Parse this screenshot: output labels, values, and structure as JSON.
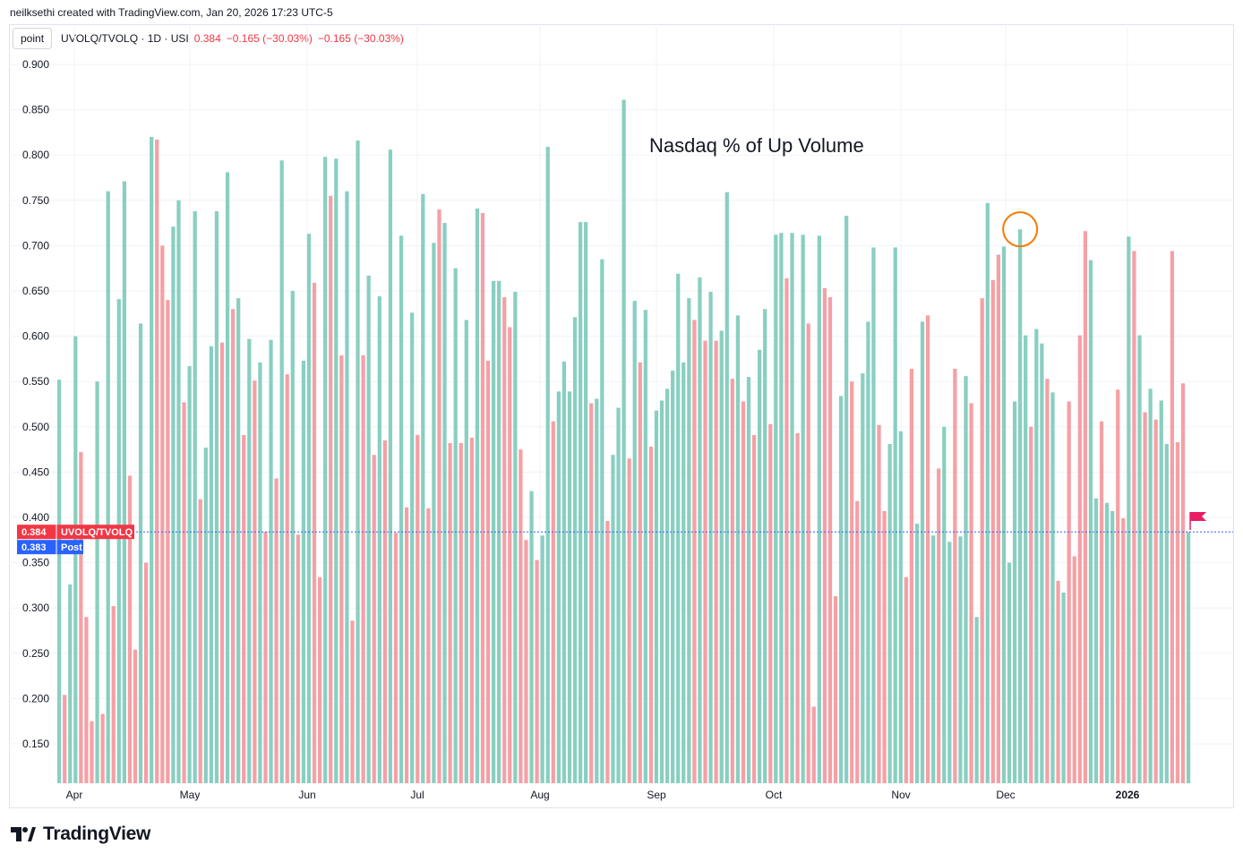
{
  "credit": "neilksethi created with TradingView.com, Jan 20, 2026 17:23 UTC-5",
  "header": {
    "button": "point",
    "symbol": "UVOLQ/TVOLQ · 1D · USI",
    "value": "0.384",
    "change1": "−0.165 (−30.03%)",
    "change2": "−0.165 (−30.03%)"
  },
  "brand": "TradingView",
  "colors": {
    "up": "#89cfc1",
    "down": "#f5a0a5",
    "last": "#f23645",
    "post": "#2962ff",
    "flag": "#e91e63",
    "circle": "#f57c00"
  },
  "labels": {
    "last_value": "0.384",
    "last_name": "UVOLQ/TVOLQ",
    "post_value": "0.383",
    "post_name": "Post"
  },
  "chart_data": {
    "type": "bar",
    "title": "Nasdaq % of Up Volume",
    "ylim": [
      0.105,
      0.93
    ],
    "y_ticks": [
      "0.900",
      "0.850",
      "0.800",
      "0.750",
      "0.700",
      "0.650",
      "0.600",
      "0.550",
      "0.500",
      "0.450",
      "0.400",
      "0.350",
      "0.300",
      "0.250",
      "0.200",
      "0.150"
    ],
    "x_ticks": [
      "Apr",
      "May",
      "Jun",
      "Jul",
      "Aug",
      "Sep",
      "Oct",
      "Nov",
      "Dec",
      "2026"
    ],
    "values": [
      0.552,
      0.204,
      0.326,
      0.6,
      0.472,
      0.29,
      0.175,
      0.55,
      0.183,
      0.76,
      0.302,
      0.641,
      0.771,
      0.446,
      0.254,
      0.614,
      0.35,
      0.82,
      0.817,
      0.7,
      0.64,
      0.721,
      0.75,
      0.527,
      0.567,
      0.738,
      0.42,
      0.477,
      0.589,
      0.738,
      0.593,
      0.781,
      0.63,
      0.642,
      0.491,
      0.597,
      0.551,
      0.571,
      0.384,
      0.596,
      0.443,
      0.794,
      0.558,
      0.65,
      0.381,
      0.573,
      0.713,
      0.659,
      0.334,
      0.798,
      0.755,
      0.796,
      0.579,
      0.76,
      0.286,
      0.816,
      0.579,
      0.667,
      0.469,
      0.644,
      0.485,
      0.806,
      0.383,
      0.711,
      0.411,
      0.626,
      0.491,
      0.757,
      0.41,
      0.703,
      0.74,
      0.725,
      0.482,
      0.675,
      0.482,
      0.618,
      0.488,
      0.741,
      0.736,
      0.573,
      0.661,
      0.661,
      0.643,
      0.61,
      0.649,
      0.475,
      0.375,
      0.429,
      0.353,
      0.38,
      0.809,
      0.506,
      0.539,
      0.572,
      0.539,
      0.621,
      0.726,
      0.726,
      0.526,
      0.531,
      0.685,
      0.396,
      0.469,
      0.521,
      0.861,
      0.465,
      0.639,
      0.571,
      0.629,
      0.478,
      0.518,
      0.529,
      0.542,
      0.562,
      0.669,
      0.571,
      0.642,
      0.618,
      0.665,
      0.595,
      0.649,
      0.595,
      0.606,
      0.759,
      0.553,
      0.623,
      0.528,
      0.555,
      0.491,
      0.585,
      0.63,
      0.503,
      0.712,
      0.714,
      0.664,
      0.714,
      0.493,
      0.712,
      0.614,
      0.191,
      0.711,
      0.653,
      0.643,
      0.313,
      0.534,
      0.733,
      0.55,
      0.418,
      0.559,
      0.616,
      0.698,
      0.502,
      0.407,
      0.481,
      0.698,
      0.495,
      0.334,
      0.564,
      0.393,
      0.616,
      0.623,
      0.38,
      0.454,
      0.5,
      0.373,
      0.564,
      0.379,
      0.556,
      0.526,
      0.29,
      0.642,
      0.747,
      0.662,
      0.69,
      0.699,
      0.35,
      0.528,
      0.718,
      0.601,
      0.5,
      0.608,
      0.592,
      0.553,
      0.538,
      0.33,
      0.317,
      0.528,
      0.357,
      0.601,
      0.716,
      0.684,
      0.421,
      0.506,
      0.416,
      0.407,
      0.541,
      0.399,
      0.71,
      0.694,
      0.601,
      0.516,
      0.542,
      0.508,
      0.529,
      0.481,
      0.694,
      0.483,
      0.548,
      0.384
    ],
    "colors": [
      "u",
      "d",
      "u",
      "u",
      "d",
      "d",
      "d",
      "u",
      "d",
      "u",
      "d",
      "u",
      "u",
      "d",
      "d",
      "u",
      "d",
      "u",
      "d",
      "d",
      "d",
      "u",
      "u",
      "d",
      "u",
      "u",
      "d",
      "u",
      "u",
      "u",
      "d",
      "u",
      "d",
      "u",
      "d",
      "u",
      "d",
      "u",
      "d",
      "u",
      "d",
      "u",
      "d",
      "u",
      "d",
      "u",
      "u",
      "d",
      "d",
      "u",
      "d",
      "u",
      "d",
      "u",
      "d",
      "u",
      "d",
      "u",
      "d",
      "u",
      "d",
      "u",
      "d",
      "u",
      "d",
      "u",
      "d",
      "u",
      "d",
      "u",
      "d",
      "u",
      "d",
      "u",
      "d",
      "u",
      "d",
      "u",
      "d",
      "d",
      "u",
      "u",
      "d",
      "d",
      "u",
      "d",
      "d",
      "u",
      "d",
      "u",
      "u",
      "d",
      "u",
      "u",
      "u",
      "u",
      "u",
      "u",
      "d",
      "u",
      "u",
      "d",
      "u",
      "u",
      "u",
      "d",
      "u",
      "d",
      "u",
      "d",
      "u",
      "u",
      "u",
      "u",
      "u",
      "u",
      "u",
      "d",
      "u",
      "d",
      "u",
      "d",
      "u",
      "u",
      "d",
      "u",
      "d",
      "u",
      "d",
      "u",
      "u",
      "d",
      "u",
      "u",
      "d",
      "u",
      "d",
      "u",
      "d",
      "d",
      "u",
      "d",
      "d",
      "d",
      "u",
      "u",
      "d",
      "d",
      "u",
      "u",
      "u",
      "d",
      "d",
      "u",
      "u",
      "u",
      "d",
      "d",
      "u",
      "u",
      "d",
      "u",
      "d",
      "u",
      "u",
      "d",
      "u",
      "u",
      "d",
      "u",
      "d",
      "u",
      "d",
      "d",
      "u",
      "u",
      "u",
      "u",
      "u",
      "d",
      "u",
      "u",
      "d",
      "u",
      "d",
      "u",
      "d",
      "d",
      "d",
      "d",
      "u",
      "u",
      "d",
      "u",
      "u",
      "d",
      "d",
      "u",
      "d",
      "u",
      "d",
      "u",
      "d",
      "u",
      "u",
      "d",
      "d",
      "d",
      "u",
      "d",
      "d",
      "u",
      "u",
      "u",
      "d",
      "u",
      "d",
      "d"
    ],
    "last_value": 0.384,
    "post_value": 0.383
  }
}
